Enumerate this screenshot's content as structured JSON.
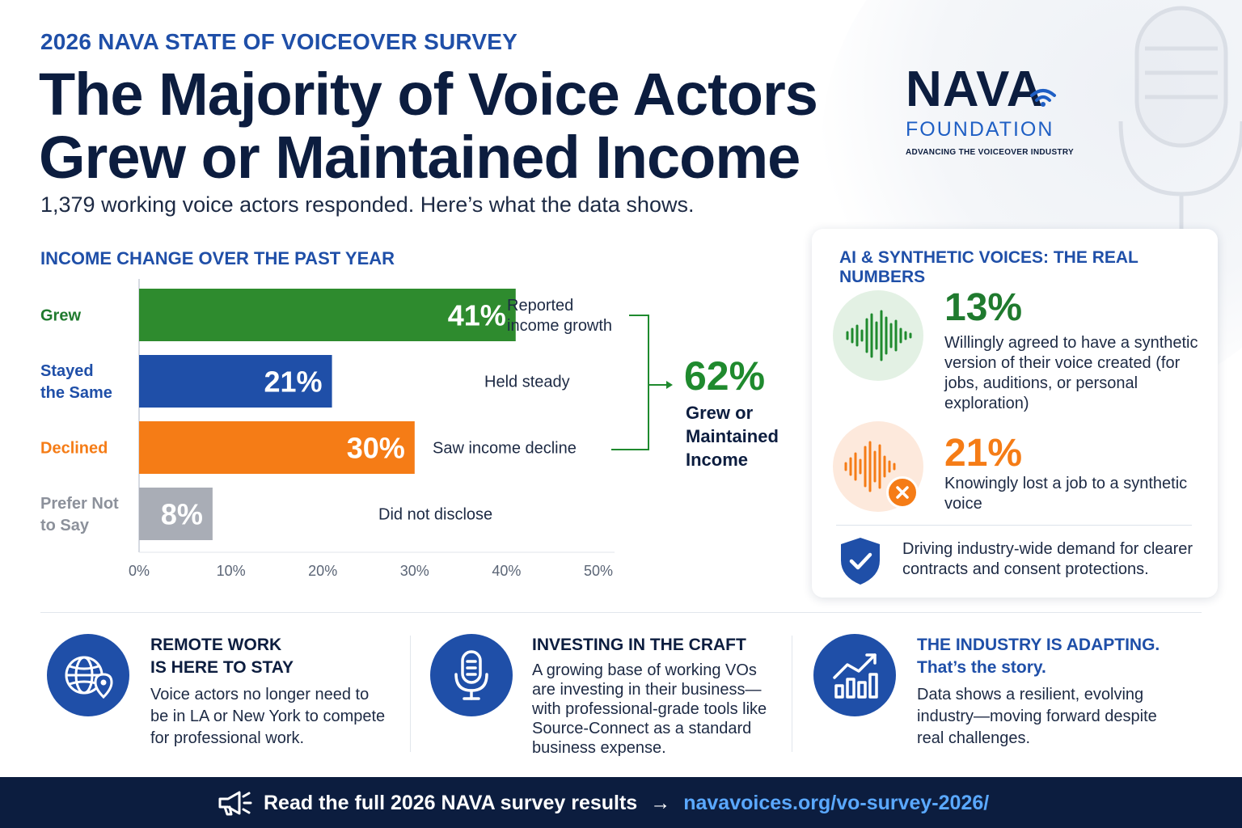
{
  "header": {
    "eyebrow": "2026 NAVA STATE OF VOICEOVER SURVEY",
    "title_line1": "The Majority of Voice Actors",
    "title_line2": "Grew or Maintained Income",
    "subhead": "1,379 working voice actors responded. Here’s what the data shows."
  },
  "logo": {
    "name": "NAVA",
    "foundation": "FOUNDATION",
    "tagline": "ADVANCING THE VOICEOVER INDUSTRY"
  },
  "chart_data": {
    "type": "bar",
    "orientation": "horizontal",
    "title": "INCOME CHANGE OVER THE PAST YEAR",
    "categories": [
      [
        "Grew"
      ],
      [
        "Stayed",
        "the Same"
      ],
      [
        "Declined"
      ],
      [
        "Prefer Not",
        "to Say"
      ]
    ],
    "values": [
      41,
      21,
      30,
      8
    ],
    "value_labels": [
      "41%",
      "21%",
      "30%",
      "8%"
    ],
    "annotations": [
      [
        "Reported",
        "income growth"
      ],
      [
        "Held steady"
      ],
      [
        "Saw income decline"
      ],
      [
        "Did not disclose"
      ]
    ],
    "colors": [
      "#2e8b2e",
      "#1f4fa8",
      "#f57c16",
      "#a9adb6"
    ],
    "label_colors": [
      "#1f7a2e",
      "#1f4fa8",
      "#f57c16",
      "#8c919b"
    ],
    "xticks": [
      "0%",
      "10%",
      "20%",
      "30%",
      "40%",
      "50%"
    ],
    "xlim": [
      0,
      50
    ],
    "grid": false
  },
  "callout": {
    "value": "62%",
    "label_lines": [
      "Grew or",
      "Maintained",
      "Income"
    ]
  },
  "ai_card": {
    "title": "AI & SYNTHETIC VOICES: THE REAL NUMBERS",
    "stat1_value": "13%",
    "stat1_text": "Willingly agreed to have a synthetic version of their voice created (for jobs, auditions, or personal exploration)",
    "stat2_value": "21%",
    "stat2_text": "Knowingly lost a job to a synthetic voice",
    "footer_text": "Driving industry-wide demand for clearer contracts and consent protections."
  },
  "features": [
    {
      "icon": "globe-location-icon",
      "title_lines": [
        "REMOTE WORK",
        "IS HERE TO STAY"
      ],
      "body": "Voice actors no longer need to be in LA or New York to compete for professional work."
    },
    {
      "icon": "microphone-icon",
      "title_lines": [
        "INVESTING IN THE CRAFT"
      ],
      "body": "A growing base of working VOs are investing in their business—with professional-grade tools like Source-Connect as a standard business expense."
    },
    {
      "icon": "growth-chart-icon",
      "title_lines": [
        "THE INDUSTRY IS ADAPTING."
      ],
      "title_accent": "That’s the story.",
      "body": "Data shows a resilient, evolving industry—moving forward despite real challenges."
    }
  ],
  "footer": {
    "icon": "megaphone-icon",
    "text": "Read the full 2026 NAVA survey results",
    "arrow": "→",
    "link": "navavoices.org/vo-survey-2026/"
  },
  "colors": {
    "navy": "#0c1d3f",
    "blue": "#1f4fa8",
    "green": "#2e8b2e",
    "orange": "#f57c16",
    "gray": "#a9adb6"
  }
}
